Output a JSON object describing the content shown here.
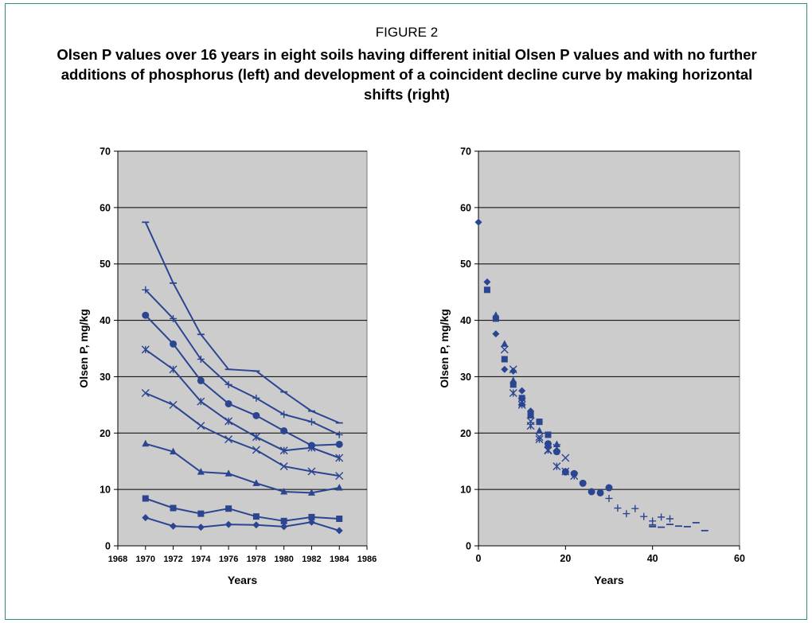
{
  "figure": {
    "label": "FIGURE 2",
    "title": "Olsen P values over 16 years in eight soils having different initial Olsen P values and with no further additions of phosphorus (left) and development of a coincident decline curve by making horizontal shifts (right)"
  },
  "colors": {
    "series": "#2b4591",
    "plot_bg": "#cccccc",
    "frame": "#2e8b7d"
  },
  "chart_data": [
    {
      "type": "line",
      "xlabel": "Years",
      "ylabel": "Olsen P, mg/kg",
      "xlim": [
        1968,
        1986
      ],
      "ylim": [
        0,
        70
      ],
      "xticks": [
        "1968",
        "1970",
        "1972",
        "1974",
        "1976",
        "1978",
        "1980",
        "1982",
        "1984",
        "1986"
      ],
      "yticks": [
        "0",
        "10",
        "20",
        "30",
        "40",
        "50",
        "60",
        "70"
      ],
      "grid": true,
      "x": [
        1970,
        1972,
        1974,
        1976,
        1978,
        1980,
        1982,
        1984
      ],
      "series": [
        {
          "marker": "diamond",
          "values": [
            5.0,
            3.5,
            3.3,
            3.8,
            3.7,
            3.4,
            4.2,
            2.7
          ]
        },
        {
          "marker": "square",
          "values": [
            8.4,
            6.7,
            5.7,
            6.6,
            5.2,
            4.4,
            5.1,
            4.8
          ]
        },
        {
          "marker": "triangle",
          "values": [
            18.1,
            16.7,
            13.1,
            12.8,
            11.1,
            9.6,
            9.4,
            10.3
          ]
        },
        {
          "marker": "x",
          "values": [
            27.1,
            25.0,
            21.3,
            18.9,
            17.0,
            14.1,
            13.2,
            12.4
          ]
        },
        {
          "marker": "asterisk",
          "values": [
            34.8,
            31.3,
            25.6,
            22.1,
            19.3,
            16.9,
            17.4,
            15.6
          ]
        },
        {
          "marker": "circle",
          "values": [
            40.9,
            35.8,
            29.3,
            25.2,
            23.1,
            20.4,
            17.8,
            18.0
          ]
        },
        {
          "marker": "plus",
          "values": [
            45.4,
            40.3,
            33.1,
            28.6,
            26.2,
            23.3,
            22.0,
            19.7
          ]
        },
        {
          "marker": "dash",
          "values": [
            57.4,
            46.6,
            37.5,
            31.3,
            31.0,
            27.3,
            23.9,
            21.8
          ]
        }
      ]
    },
    {
      "type": "scatter",
      "xlabel": "Years",
      "ylabel": "Olsen P, mg/kg",
      "xlim": [
        0,
        60
      ],
      "ylim": [
        0,
        70
      ],
      "xticks": [
        "0",
        "20",
        "40",
        "60"
      ],
      "yticks": [
        "0",
        "10",
        "20",
        "30",
        "40",
        "50",
        "60",
        "70"
      ],
      "grid": true,
      "series": [
        {
          "marker": "diamond",
          "points": [
            [
              0,
              57.4
            ],
            [
              2,
              46.8
            ],
            [
              4,
              37.6
            ],
            [
              6,
              31.3
            ],
            [
              8,
              31.0
            ],
            [
              10,
              27.5
            ],
            [
              12,
              23.9
            ],
            [
              14,
              22.0
            ]
          ]
        },
        {
          "marker": "square",
          "points": [
            [
              2,
              45.4
            ],
            [
              4,
              40.3
            ],
            [
              6,
              33.1
            ],
            [
              8,
              28.6
            ],
            [
              10,
              26.2
            ],
            [
              12,
              23.3
            ],
            [
              14,
              22.0
            ],
            [
              16,
              19.7
            ]
          ]
        },
        {
          "marker": "triangle",
          "points": [
            [
              4,
              40.9
            ],
            [
              6,
              35.8
            ],
            [
              8,
              29.3
            ],
            [
              10,
              25.2
            ],
            [
              12,
              23.1
            ],
            [
              14,
              20.4
            ],
            [
              16,
              17.8
            ],
            [
              18,
              18.0
            ]
          ]
        },
        {
          "marker": "x",
          "points": [
            [
              6,
              34.8
            ],
            [
              8,
              31.3
            ],
            [
              10,
              25.6
            ],
            [
              12,
              22.1
            ],
            [
              14,
              19.3
            ],
            [
              16,
              16.9
            ],
            [
              18,
              17.4
            ],
            [
              20,
              15.6
            ]
          ]
        },
        {
          "marker": "asterisk",
          "points": [
            [
              8,
              27.1
            ],
            [
              10,
              25.0
            ],
            [
              12,
              21.3
            ],
            [
              14,
              18.9
            ],
            [
              16,
              17.0
            ],
            [
              18,
              14.1
            ],
            [
              20,
              13.2
            ],
            [
              22,
              12.4
            ]
          ]
        },
        {
          "marker": "circle",
          "points": [
            [
              16,
              18.1
            ],
            [
              18,
              16.7
            ],
            [
              20,
              13.1
            ],
            [
              22,
              12.8
            ],
            [
              24,
              11.1
            ],
            [
              26,
              9.6
            ],
            [
              28,
              9.4
            ],
            [
              30,
              10.3
            ]
          ]
        },
        {
          "marker": "plus",
          "points": [
            [
              30,
              8.4
            ],
            [
              32,
              6.7
            ],
            [
              34,
              5.7
            ],
            [
              36,
              6.6
            ],
            [
              38,
              5.2
            ],
            [
              40,
              4.4
            ],
            [
              42,
              5.1
            ],
            [
              44,
              4.8
            ]
          ]
        },
        {
          "marker": "dash",
          "points": [
            [
              40,
              3.4
            ],
            [
              42,
              3.3
            ],
            [
              44,
              3.8
            ],
            [
              46,
              3.5
            ],
            [
              48,
              3.4
            ],
            [
              50,
              4.1
            ],
            [
              52,
              2.7
            ],
            [
              40,
              3.7
            ]
          ]
        }
      ]
    }
  ]
}
